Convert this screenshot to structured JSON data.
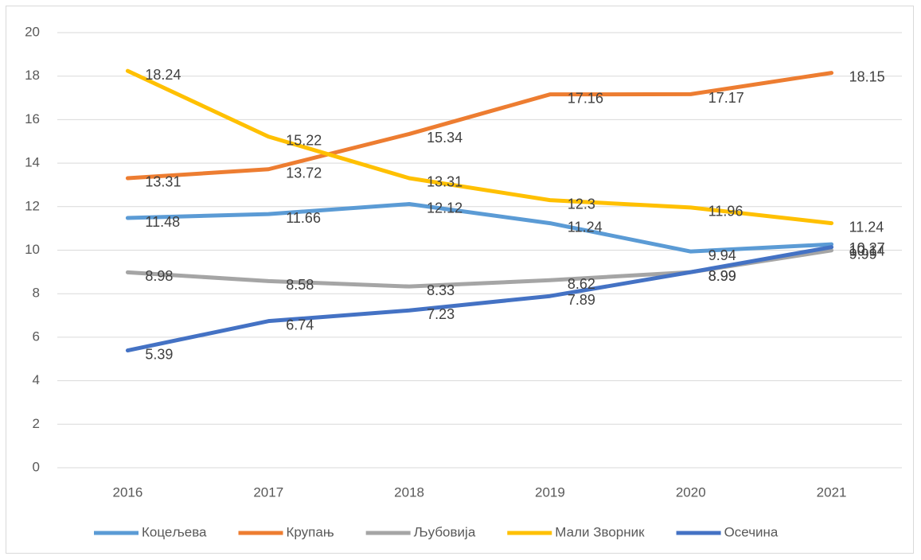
{
  "chart_data": {
    "type": "line",
    "categories": [
      "2016",
      "2017",
      "2018",
      "2019",
      "2020",
      "2021"
    ],
    "series": [
      {
        "name": "Коцељева",
        "color": "#5b9bd5",
        "values": [
          11.48,
          11.66,
          12.12,
          11.24,
          9.94,
          10.27
        ]
      },
      {
        "name": "Крупањ",
        "color": "#ed7d31",
        "values": [
          13.31,
          13.72,
          15.34,
          17.16,
          17.17,
          18.15
        ]
      },
      {
        "name": "Љубовија",
        "color": "#a5a5a5",
        "values": [
          8.98,
          8.58,
          8.33,
          8.62,
          8.99,
          9.99
        ]
      },
      {
        "name": "Мали Зворник",
        "color": "#ffc000",
        "values": [
          18.24,
          15.22,
          13.31,
          12.3,
          11.96,
          11.24
        ]
      },
      {
        "name": "Осечина",
        "color": "#4472c4",
        "values": [
          5.39,
          6.74,
          7.23,
          7.89,
          8.99,
          10.14
        ]
      }
    ],
    "ylim": [
      0,
      20
    ],
    "yticks": [
      0,
      2,
      4,
      6,
      8,
      10,
      12,
      14,
      16,
      18,
      20
    ],
    "grid": true,
    "legend": "bottom"
  }
}
